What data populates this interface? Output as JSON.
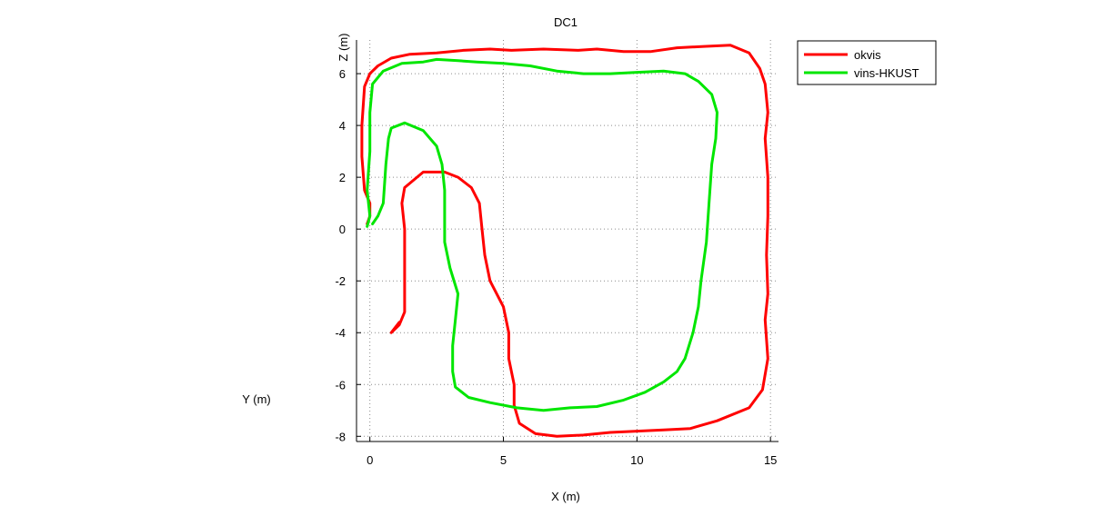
{
  "chart_data": {
    "type": "line",
    "title": "DC1",
    "xlabel": "X (m)",
    "ylabel": "Y (m)",
    "zlabel": "Z (m)",
    "xlim": [
      -0.5,
      15.3
    ],
    "ylim": [
      -8.2,
      7.3
    ],
    "x_ticks": [
      0,
      5,
      10,
      15
    ],
    "y_ticks": [
      -8,
      -6,
      -4,
      -2,
      0,
      2,
      4,
      6
    ],
    "grid": true,
    "legend_position": "top-right",
    "series": [
      {
        "name": "okvis",
        "color": "#ff0000",
        "points": [
          [
            -0.1,
            0.2
          ],
          [
            0.0,
            0.5
          ],
          [
            0.0,
            1.0
          ],
          [
            -0.2,
            1.5
          ],
          [
            -0.3,
            2.8
          ],
          [
            -0.3,
            4.0
          ],
          [
            -0.2,
            5.5
          ],
          [
            0.0,
            6.0
          ],
          [
            0.3,
            6.3
          ],
          [
            0.8,
            6.6
          ],
          [
            1.5,
            6.75
          ],
          [
            2.5,
            6.8
          ],
          [
            3.5,
            6.9
          ],
          [
            4.5,
            6.95
          ],
          [
            5.3,
            6.9
          ],
          [
            6.5,
            6.95
          ],
          [
            7.8,
            6.9
          ],
          [
            8.5,
            6.95
          ],
          [
            9.5,
            6.85
          ],
          [
            10.5,
            6.85
          ],
          [
            11.5,
            7.0
          ],
          [
            12.5,
            7.05
          ],
          [
            13.5,
            7.1
          ],
          [
            14.2,
            6.8
          ],
          [
            14.6,
            6.2
          ],
          [
            14.8,
            5.6
          ],
          [
            14.9,
            4.5
          ],
          [
            14.8,
            3.5
          ],
          [
            14.9,
            2.0
          ],
          [
            14.9,
            0.5
          ],
          [
            14.85,
            -1.0
          ],
          [
            14.9,
            -2.5
          ],
          [
            14.8,
            -3.5
          ],
          [
            14.9,
            -5.0
          ],
          [
            14.7,
            -6.2
          ],
          [
            14.2,
            -6.9
          ],
          [
            13.0,
            -7.4
          ],
          [
            12.0,
            -7.7
          ],
          [
            11.0,
            -7.75
          ],
          [
            10.0,
            -7.8
          ],
          [
            9.0,
            -7.85
          ],
          [
            8.0,
            -7.95
          ],
          [
            7.0,
            -8.0
          ],
          [
            6.2,
            -7.9
          ],
          [
            5.6,
            -7.5
          ],
          [
            5.4,
            -6.8
          ],
          [
            5.4,
            -6.0
          ],
          [
            5.2,
            -5.0
          ],
          [
            5.2,
            -4.0
          ],
          [
            5.0,
            -3.0
          ],
          [
            4.5,
            -2.0
          ],
          [
            4.3,
            -1.0
          ],
          [
            4.2,
            0.0
          ],
          [
            4.1,
            1.0
          ],
          [
            3.8,
            1.6
          ],
          [
            3.3,
            2.0
          ],
          [
            2.8,
            2.2
          ],
          [
            2.0,
            2.2
          ],
          [
            1.3,
            1.6
          ],
          [
            1.2,
            1.0
          ],
          [
            1.3,
            0.0
          ],
          [
            1.3,
            -1.0
          ],
          [
            1.3,
            -2.0
          ],
          [
            1.3,
            -3.2
          ],
          [
            1.1,
            -3.7
          ],
          [
            0.8,
            -4.0
          ],
          [
            1.1,
            -3.6
          ],
          [
            0.9,
            -3.9
          ]
        ]
      },
      {
        "name": "vins-HKUST",
        "color": "#00e600",
        "points": [
          [
            -0.1,
            0.1
          ],
          [
            0.0,
            0.5
          ],
          [
            -0.1,
            1.5
          ],
          [
            0.0,
            3.0
          ],
          [
            0.0,
            4.5
          ],
          [
            0.1,
            5.6
          ],
          [
            0.5,
            6.1
          ],
          [
            1.2,
            6.4
          ],
          [
            2.0,
            6.45
          ],
          [
            2.5,
            6.55
          ],
          [
            3.3,
            6.5
          ],
          [
            4.0,
            6.45
          ],
          [
            5.0,
            6.4
          ],
          [
            6.0,
            6.3
          ],
          [
            7.0,
            6.1
          ],
          [
            8.0,
            6.0
          ],
          [
            9.0,
            6.0
          ],
          [
            10.0,
            6.05
          ],
          [
            11.0,
            6.1
          ],
          [
            11.8,
            6.0
          ],
          [
            12.3,
            5.7
          ],
          [
            12.8,
            5.2
          ],
          [
            13.0,
            4.5
          ],
          [
            12.95,
            3.5
          ],
          [
            12.8,
            2.5
          ],
          [
            12.7,
            1.0
          ],
          [
            12.6,
            -0.5
          ],
          [
            12.4,
            -2.0
          ],
          [
            12.3,
            -3.0
          ],
          [
            12.1,
            -4.0
          ],
          [
            11.8,
            -5.0
          ],
          [
            11.5,
            -5.5
          ],
          [
            11.0,
            -5.9
          ],
          [
            10.3,
            -6.3
          ],
          [
            9.5,
            -6.6
          ],
          [
            8.5,
            -6.85
          ],
          [
            7.5,
            -6.9
          ],
          [
            6.5,
            -7.0
          ],
          [
            5.5,
            -6.9
          ],
          [
            4.5,
            -6.7
          ],
          [
            3.7,
            -6.5
          ],
          [
            3.2,
            -6.1
          ],
          [
            3.1,
            -5.5
          ],
          [
            3.1,
            -4.5
          ],
          [
            3.2,
            -3.5
          ],
          [
            3.3,
            -2.5
          ],
          [
            3.0,
            -1.5
          ],
          [
            2.8,
            -0.5
          ],
          [
            2.8,
            0.5
          ],
          [
            2.8,
            1.5
          ],
          [
            2.7,
            2.5
          ],
          [
            2.5,
            3.2
          ],
          [
            2.0,
            3.8
          ],
          [
            1.3,
            4.1
          ],
          [
            0.8,
            3.9
          ],
          [
            0.7,
            3.5
          ],
          [
            0.6,
            2.5
          ],
          [
            0.5,
            1.0
          ],
          [
            0.3,
            0.5
          ],
          [
            0.1,
            0.2
          ]
        ]
      }
    ]
  }
}
